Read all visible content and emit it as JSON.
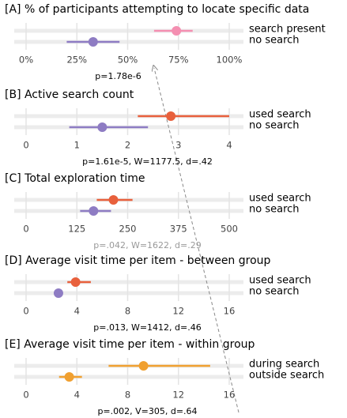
{
  "chart_data": [
    {
      "type": "dotinterval",
      "title": "[A] % of participants attempting to locate specific data",
      "series": [
        {
          "name": "search present",
          "color": "#f48fb1",
          "estimate": 74,
          "low": 63,
          "high": 82
        },
        {
          "name": "no search",
          "color": "#8e7cc3",
          "estimate": 33,
          "low": 20,
          "high": 46
        }
      ],
      "xlim": [
        0,
        100
      ],
      "xticks": [
        {
          "value": 0,
          "label": "0%"
        },
        {
          "value": 25,
          "label": "25%"
        },
        {
          "value": 50,
          "label": "50%"
        },
        {
          "value": 75,
          "label": "75%"
        },
        {
          "value": 100,
          "label": "100%"
        }
      ],
      "note": "p=1.78e-6",
      "note_color": "#000000",
      "grid": true
    },
    {
      "type": "dotinterval",
      "title": "[B] Active search count",
      "series": [
        {
          "name": "used search",
          "color": "#e8603c",
          "estimate": 2.85,
          "low": 2.2,
          "high": 4.0
        },
        {
          "name": "no search",
          "color": "#8e7cc3",
          "estimate": 1.5,
          "low": 0.85,
          "high": 2.4
        }
      ],
      "xlim": [
        0,
        4
      ],
      "xticks": [
        0,
        1,
        2,
        3,
        4
      ],
      "note": "p=1.61e-5, W=1177.5, d=.42",
      "note_color": "#000000",
      "grid": true
    },
    {
      "type": "dotinterval",
      "title": "[C] Total exploration time",
      "series": [
        {
          "name": "used search",
          "color": "#e8603c",
          "estimate": 215,
          "low": 174,
          "high": 262
        },
        {
          "name": "no search",
          "color": "#8e7cc3",
          "estimate": 166,
          "low": 133,
          "high": 209
        }
      ],
      "xlim": [
        0,
        500
      ],
      "xticks": [
        0,
        125,
        250,
        375,
        500
      ],
      "note": "p=.042, W=1622, d=.29",
      "note_color": "#999999",
      "grid": true
    },
    {
      "type": "dotinterval",
      "title": "[D]  Average visit time per item - between group",
      "series": [
        {
          "name": "used search",
          "color": "#e8603c",
          "estimate": 3.9,
          "low": 3.25,
          "high": 5.1
        },
        {
          "name": "no search",
          "color": "#8e7cc3",
          "estimate": 2.55,
          "low": 2.3,
          "high": 2.8
        }
      ],
      "xlim": [
        0,
        16
      ],
      "xticks": [
        0,
        4,
        8,
        12,
        16
      ],
      "note": "p=.013, W=1412, d=.46",
      "note_color": "#000000",
      "grid": true
    },
    {
      "type": "dotinterval",
      "title": "[E]  Average visit time per item - within group",
      "series": [
        {
          "name": "during search",
          "color": "#f0a030",
          "estimate": 9.25,
          "low": 6.5,
          "high": 14.5
        },
        {
          "name": "outside search",
          "color": "#f0a030",
          "estimate": 3.4,
          "low": 2.6,
          "high": 4.4
        }
      ],
      "xlim": [
        0,
        16
      ],
      "xticks": [
        0,
        4,
        8,
        12,
        16
      ],
      "note": "p=.002, V=305, d=.64",
      "note_color": "#000000",
      "grid": true
    }
  ]
}
